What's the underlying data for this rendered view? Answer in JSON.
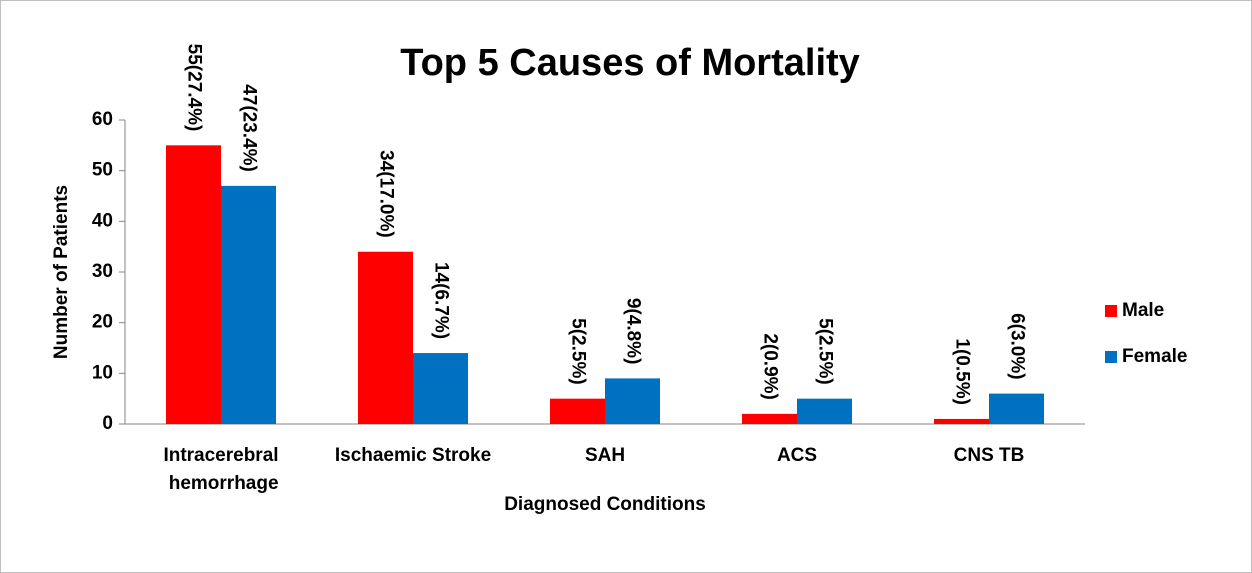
{
  "chart_data": {
    "type": "bar",
    "title": "Top 5 Causes of Mortality",
    "x_label": "Diagnosed Conditions",
    "y_label": "Number of Patients",
    "categories": [
      "Intracerebral hemorrhage",
      "Ischaemic Stroke",
      "SAH",
      "ACS",
      "CNS TB"
    ],
    "series": [
      {
        "name": "Male",
        "color": "#ff0000",
        "values": [
          55,
          34,
          5,
          2,
          1
        ],
        "value_labels": [
          "55(27.4%)",
          "34(17.0%)",
          "5(2.5%)",
          "2(0.9%)",
          "1(0.5%)"
        ]
      },
      {
        "name": "Female",
        "color": "#0070c0",
        "values": [
          47,
          14,
          9,
          5,
          6
        ],
        "value_labels": [
          "47(23.4%)",
          "14(6.7%)",
          "9(4.8%)",
          "5(2.5%)",
          "6(3.0%)"
        ]
      }
    ],
    "ylim": [
      0,
      60
    ],
    "yticks": [
      0,
      10,
      20,
      30,
      40,
      50,
      60
    ],
    "grid": false,
    "legend": "right"
  }
}
